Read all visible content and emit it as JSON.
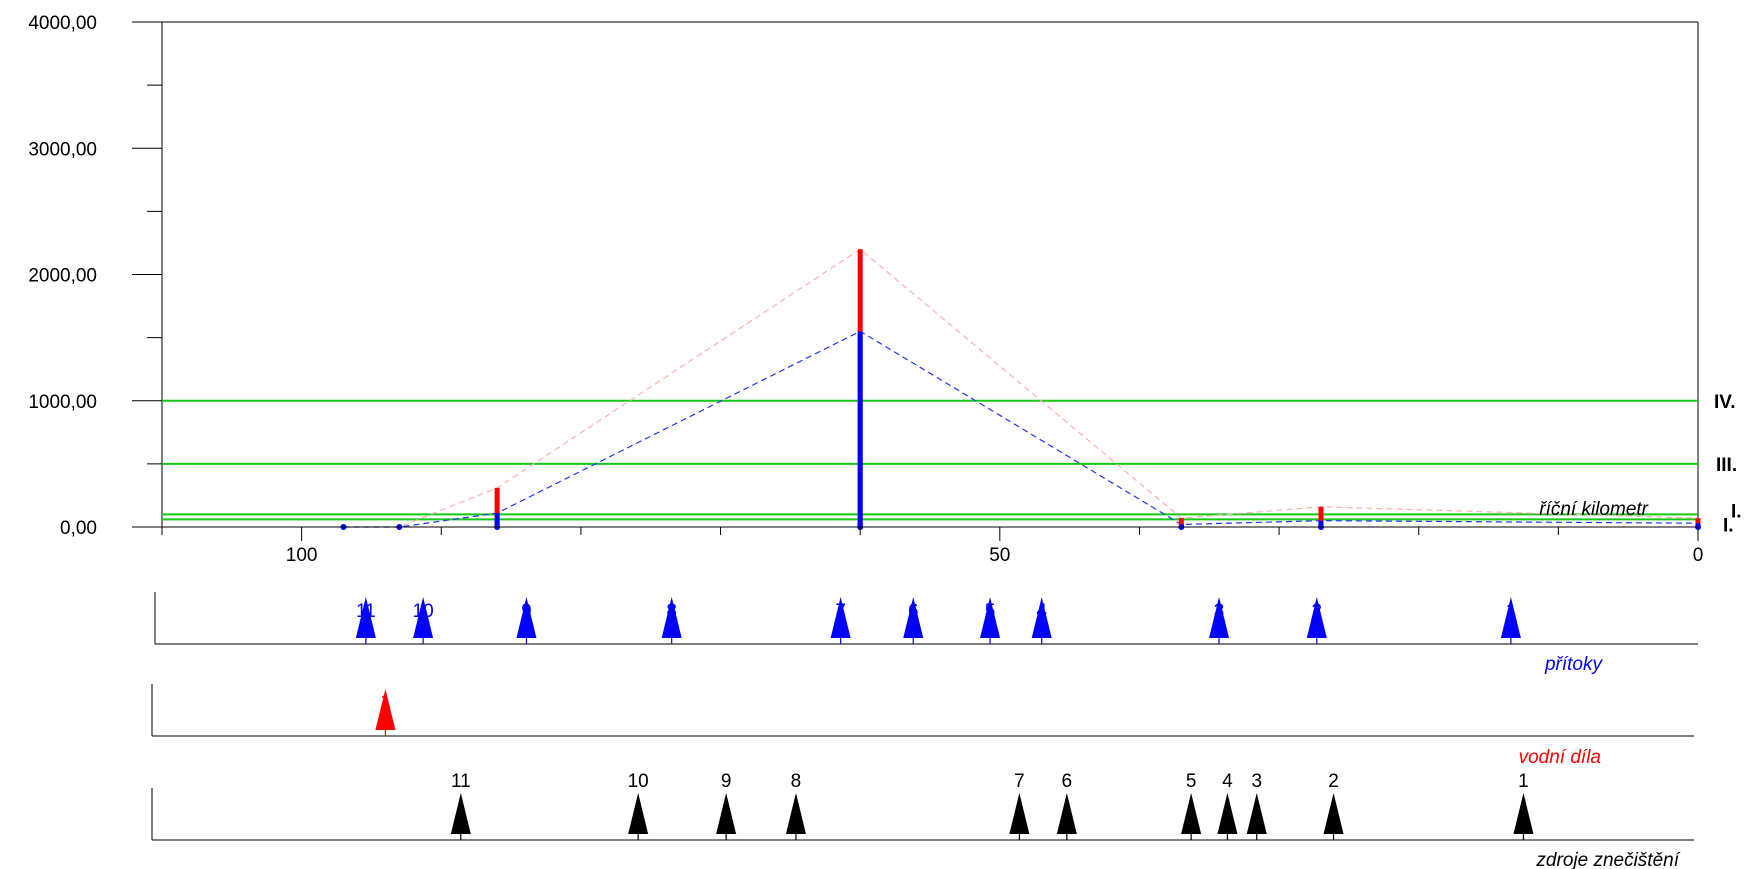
{
  "chart_data": {
    "type": "line",
    "x_axis": {
      "label": "říční kilometr",
      "reversed": true,
      "range": [
        110,
        0
      ],
      "ticks": [
        100,
        50,
        0
      ],
      "tick_labels": [
        "100",
        "50",
        "0"
      ]
    },
    "y_axis": {
      "range": [
        0,
        4000
      ],
      "ticks": [
        0,
        1000,
        2000,
        3000,
        4000
      ],
      "tick_labels": [
        "0,00",
        "1000,00",
        "2000,00",
        "3000,00",
        "4000,00"
      ]
    },
    "class_lines": [
      {
        "label": "IV.",
        "y": 1000
      },
      {
        "label": "III.",
        "y": 500
      },
      {
        "label": "I.",
        "y": 60
      },
      {
        "label": "I.",
        "y": 100
      }
    ],
    "series": [
      {
        "color": "#ff0000",
        "x": [
          97,
          93,
          86,
          60,
          37,
          27,
          0
        ],
        "values": [
          0,
          0,
          310,
          2200,
          70,
          160,
          70
        ]
      },
      {
        "color": "#0000ff",
        "x": [
          97,
          93,
          86,
          60,
          37,
          27,
          0
        ],
        "values": [
          0,
          0,
          110,
          1550,
          20,
          50,
          30
        ]
      }
    ],
    "tributaries": {
      "label": "přítoky",
      "color": "#0000ff",
      "items": [
        {
          "n": "11",
          "km": 95.4
        },
        {
          "n": "10",
          "km": 91.3
        },
        {
          "n": "9",
          "km": 83.9
        },
        {
          "n": "8",
          "km": 73.5
        },
        {
          "n": "7",
          "km": 61.4
        },
        {
          "n": "6",
          "km": 56.2
        },
        {
          "n": "5",
          "km": 50.7
        },
        {
          "n": "4",
          "km": 47.0
        },
        {
          "n": "3",
          "km": 34.3
        },
        {
          "n": "2",
          "km": 27.3
        },
        {
          "n": "1",
          "km": 13.4
        }
      ]
    },
    "waterworks": {
      "label": "vodní díla",
      "color": "#ff0000",
      "items": [
        {
          "n": "1",
          "km": 94.0
        }
      ]
    },
    "pollution_sources": {
      "label": "zdroje znečištění",
      "color": "#000000",
      "items": [
        {
          "n": "11",
          "km": 88.6
        },
        {
          "n": "10",
          "km": 75.9
        },
        {
          "n": "9",
          "km": 69.6
        },
        {
          "n": "8",
          "km": 64.6
        },
        {
          "n": "7",
          "km": 48.6
        },
        {
          "n": "6",
          "km": 45.2
        },
        {
          "n": "5",
          "km": 36.3
        },
        {
          "n": "4",
          "km": 33.7
        },
        {
          "n": "3",
          "km": 31.6
        },
        {
          "n": "2",
          "km": 26.1
        },
        {
          "n": "1",
          "km": 12.5
        }
      ]
    }
  }
}
